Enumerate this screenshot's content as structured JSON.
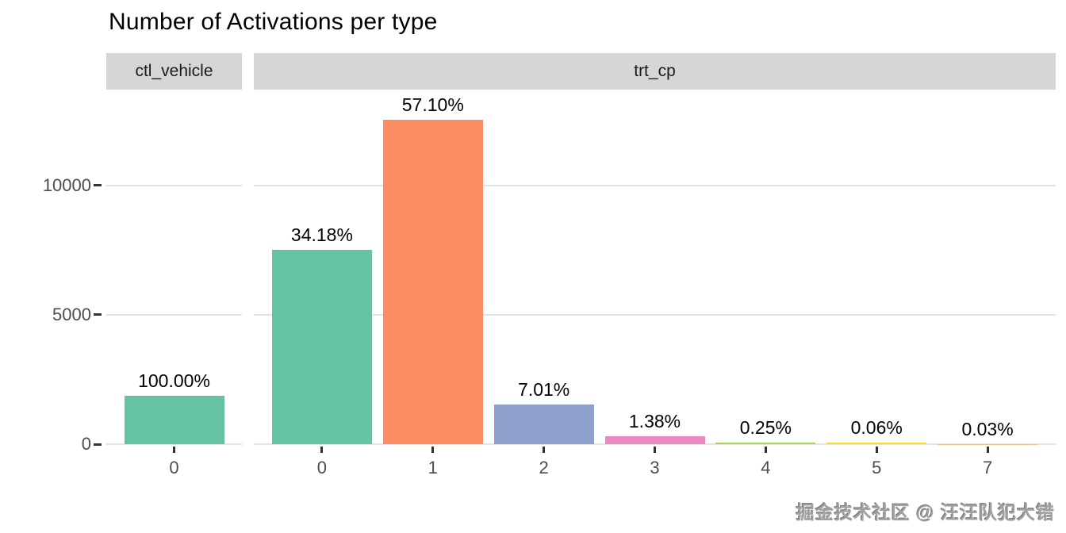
{
  "page": {
    "title": "Number of Activations per type",
    "watermark": "掘金技术社区 @ 汪汪队犯大错"
  },
  "chart_data": {
    "type": "bar",
    "title": "Number of Activations per type",
    "facets": [
      {
        "label": "ctl_vehicle",
        "categories": [
          "0"
        ],
        "values": [
          1866
        ],
        "bar_labels": [
          "100.00%"
        ],
        "bar_colors": [
          "#66C2A5"
        ]
      },
      {
        "label": "trt_cp",
        "categories": [
          "0",
          "1",
          "2",
          "3",
          "4",
          "5",
          "7"
        ],
        "values": [
          7502,
          12532,
          1539,
          303,
          55,
          13,
          7
        ],
        "bar_labels": [
          "34.18%",
          "57.10%",
          "7.01%",
          "1.38%",
          "0.25%",
          "0.06%",
          "0.03%"
        ],
        "bar_colors": [
          "#66C2A5",
          "#FC8D62",
          "#8DA0CB",
          "#E78AC3",
          "#A6D854",
          "#FFD92F",
          "#E5C494"
        ]
      }
    ],
    "xlabel": "",
    "ylabel": "",
    "y_ticks": [
      "0",
      "5000",
      "10000"
    ],
    "y_tick_values": [
      0,
      5000,
      10000
    ],
    "ylim": [
      0,
      13700
    ],
    "grid": "horizontal-major-only",
    "legend": "none",
    "colors": {
      "background": "#ffffff",
      "strip_background": "#d6d6d6",
      "strip_text": "#1a1a1a",
      "gridline": "#e2e2e2",
      "axis_text": "#4d4d4d",
      "tick_mark": "#333333",
      "bar_label_text": "#000000",
      "watermark_text": "#a0a0a0"
    }
  }
}
